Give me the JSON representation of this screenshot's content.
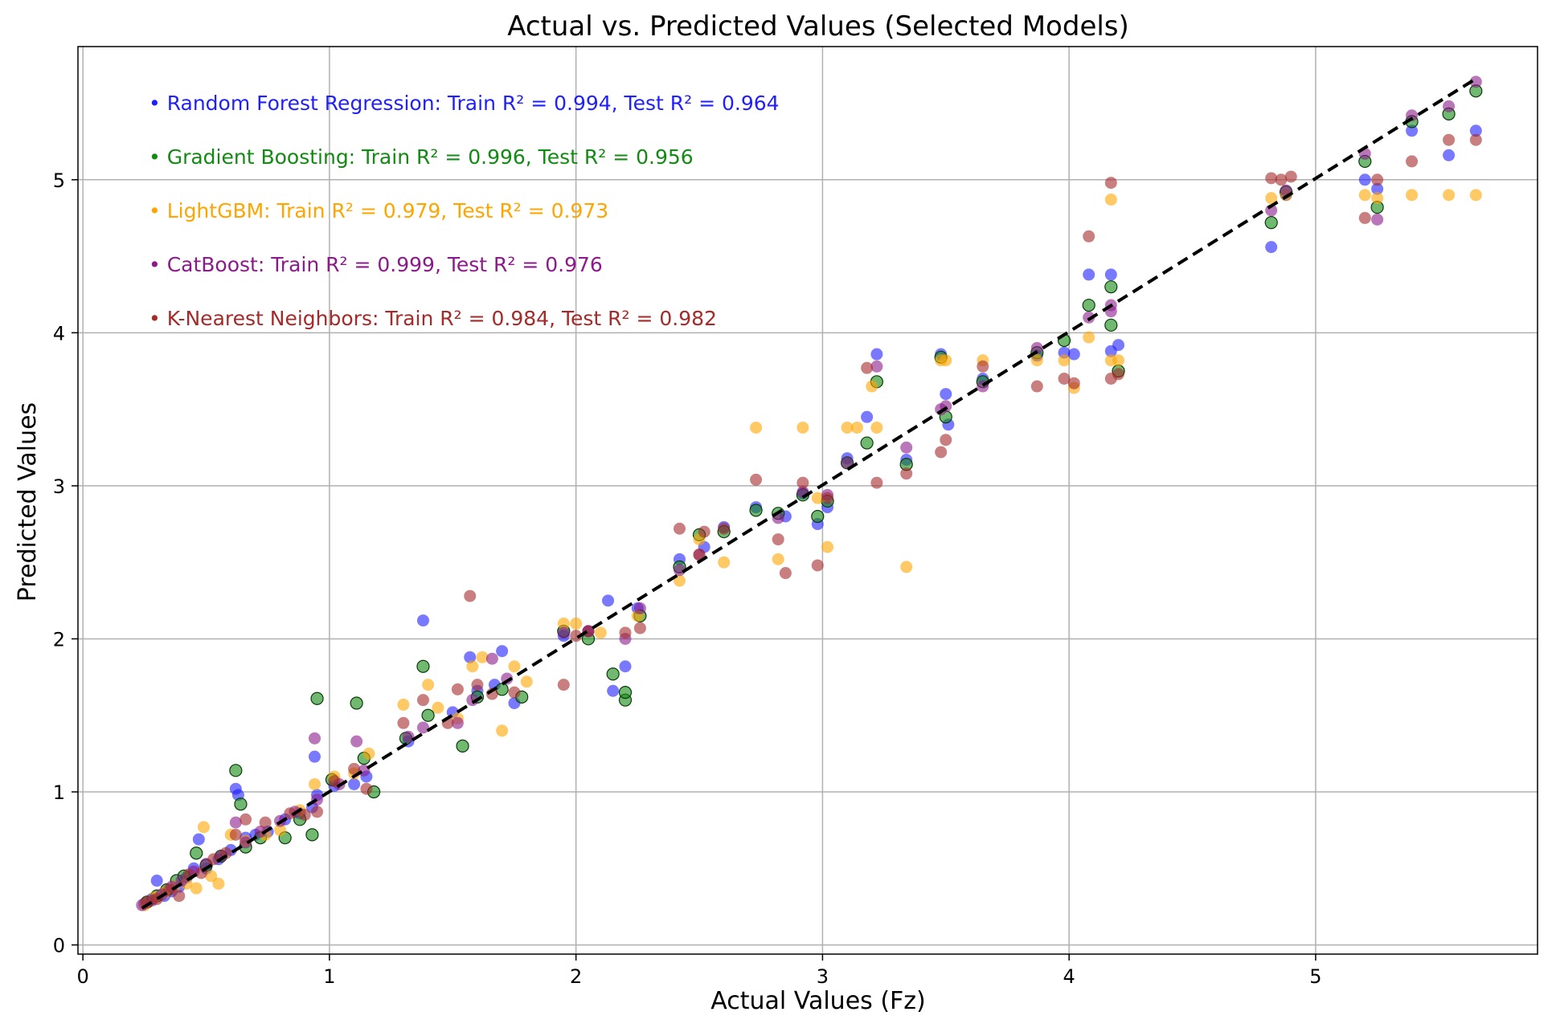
{
  "chart_data": {
    "type": "scatter",
    "title": "Actual vs. Predicted Values (Selected Models)",
    "xlabel": "Actual Values (Fz)",
    "ylabel": "Predicted Values",
    "xlim": [
      -0.02,
      5.9
    ],
    "ylim": [
      -0.06,
      5.87
    ],
    "xticks": [
      0,
      1,
      2,
      3,
      4,
      5
    ],
    "yticks": [
      0,
      1,
      2,
      3,
      4,
      5
    ],
    "grid": true,
    "reference_line": {
      "style": "dashed",
      "color": "#000000",
      "x": [
        0.24,
        5.65
      ],
      "y": [
        0.24,
        5.66
      ]
    },
    "annotations": [
      {
        "text": "• Random Forest Regression: Train R² = 0.994, Test R² = 0.964",
        "color": "#1f1fff"
      },
      {
        "text": "• Gradient Boosting: Train R² = 0.996, Test R² = 0.956",
        "color": "#138a13"
      },
      {
        "text": "• LightGBM: Train R² = 0.979, Test R² = 0.973",
        "color": "#ffa500"
      },
      {
        "text": "• CatBoost: Train R² = 0.999, Test R² = 0.976",
        "color": "#8b1a8b"
      },
      {
        "text": "• K-Nearest Neighbors: Train R² = 0.984, Test R² = 0.982",
        "color": "#a52a2a"
      }
    ],
    "series": [
      {
        "color": "#1f1fff",
        "points": [
          [
            0.25,
            0.27
          ],
          [
            0.28,
            0.3
          ],
          [
            0.3,
            0.42
          ],
          [
            0.33,
            0.32
          ],
          [
            0.36,
            0.35
          ],
          [
            0.39,
            0.38
          ],
          [
            0.42,
            0.44
          ],
          [
            0.45,
            0.5
          ],
          [
            0.47,
            0.69
          ],
          [
            0.5,
            0.5
          ],
          [
            0.55,
            0.56
          ],
          [
            0.6,
            0.62
          ],
          [
            0.62,
            1.02
          ],
          [
            0.63,
            0.98
          ],
          [
            0.66,
            0.7
          ],
          [
            0.7,
            0.72
          ],
          [
            0.75,
            0.74
          ],
          [
            0.82,
            0.82
          ],
          [
            0.88,
            0.86
          ],
          [
            0.93,
            0.9
          ],
          [
            0.94,
            1.23
          ],
          [
            0.95,
            0.98
          ],
          [
            1.02,
            1.04
          ],
          [
            1.1,
            1.05
          ],
          [
            1.15,
            1.1
          ],
          [
            1.32,
            1.33
          ],
          [
            1.38,
            2.12
          ],
          [
            1.5,
            1.52
          ],
          [
            1.57,
            1.88
          ],
          [
            1.6,
            1.66
          ],
          [
            1.67,
            1.7
          ],
          [
            1.7,
            1.92
          ],
          [
            1.75,
            1.58
          ],
          [
            1.95,
            2.02
          ],
          [
            2.05,
            2.05
          ],
          [
            2.13,
            2.25
          ],
          [
            2.15,
            1.66
          ],
          [
            2.2,
            1.82
          ],
          [
            2.25,
            2.2
          ],
          [
            2.42,
            2.52
          ],
          [
            2.52,
            2.6
          ],
          [
            2.6,
            2.73
          ],
          [
            2.73,
            2.86
          ],
          [
            2.85,
            2.8
          ],
          [
            2.92,
            2.95
          ],
          [
            2.98,
            2.75
          ],
          [
            3.02,
            2.86
          ],
          [
            3.1,
            3.18
          ],
          [
            3.18,
            3.45
          ],
          [
            3.22,
            3.86
          ],
          [
            3.34,
            3.17
          ],
          [
            3.48,
            3.86
          ],
          [
            3.5,
            3.6
          ],
          [
            3.51,
            3.4
          ],
          [
            3.65,
            3.7
          ],
          [
            3.87,
            3.85
          ],
          [
            3.98,
            3.87
          ],
          [
            4.02,
            3.86
          ],
          [
            4.08,
            4.38
          ],
          [
            4.17,
            4.38
          ],
          [
            4.17,
            3.88
          ],
          [
            4.2,
            3.92
          ],
          [
            4.82,
            4.56
          ],
          [
            4.88,
            4.9
          ],
          [
            5.2,
            5.0
          ],
          [
            5.25,
            4.94
          ],
          [
            5.39,
            5.32
          ],
          [
            5.54,
            5.16
          ],
          [
            5.65,
            5.32
          ]
        ]
      },
      {
        "color": "#138a13",
        "points": [
          [
            0.26,
            0.28
          ],
          [
            0.3,
            0.32
          ],
          [
            0.34,
            0.36
          ],
          [
            0.38,
            0.42
          ],
          [
            0.41,
            0.45
          ],
          [
            0.46,
            0.6
          ],
          [
            0.5,
            0.52
          ],
          [
            0.56,
            0.58
          ],
          [
            0.62,
            1.14
          ],
          [
            0.64,
            0.92
          ],
          [
            0.66,
            0.64
          ],
          [
            0.72,
            0.7
          ],
          [
            0.82,
            0.7
          ],
          [
            0.88,
            0.82
          ],
          [
            0.95,
            1.61
          ],
          [
            0.93,
            0.72
          ],
          [
            1.01,
            1.08
          ],
          [
            1.11,
            1.58
          ],
          [
            1.14,
            1.22
          ],
          [
            1.18,
            1.0
          ],
          [
            1.31,
            1.35
          ],
          [
            1.38,
            1.82
          ],
          [
            1.4,
            1.5
          ],
          [
            1.54,
            1.3
          ],
          [
            1.6,
            1.62
          ],
          [
            1.7,
            1.67
          ],
          [
            1.78,
            1.62
          ],
          [
            1.95,
            2.05
          ],
          [
            2.05,
            2.0
          ],
          [
            2.15,
            1.77
          ],
          [
            2.2,
            1.6
          ],
          [
            2.2,
            1.65
          ],
          [
            2.26,
            2.15
          ],
          [
            2.42,
            2.47
          ],
          [
            2.5,
            2.68
          ],
          [
            2.6,
            2.7
          ],
          [
            2.73,
            2.84
          ],
          [
            2.82,
            2.82
          ],
          [
            2.92,
            2.94
          ],
          [
            2.98,
            2.8
          ],
          [
            3.02,
            2.9
          ],
          [
            3.1,
            3.15
          ],
          [
            3.18,
            3.28
          ],
          [
            3.22,
            3.68
          ],
          [
            3.34,
            3.14
          ],
          [
            3.48,
            3.84
          ],
          [
            3.5,
            3.45
          ],
          [
            3.65,
            3.68
          ],
          [
            3.87,
            3.87
          ],
          [
            3.98,
            3.95
          ],
          [
            4.08,
            4.18
          ],
          [
            4.17,
            4.3
          ],
          [
            4.17,
            4.05
          ],
          [
            4.2,
            3.75
          ],
          [
            4.82,
            4.72
          ],
          [
            4.88,
            4.92
          ],
          [
            5.2,
            5.12
          ],
          [
            5.25,
            4.82
          ],
          [
            5.39,
            5.38
          ],
          [
            5.54,
            5.43
          ],
          [
            5.65,
            5.58
          ]
        ]
      },
      {
        "color": "#ffa500",
        "points": [
          [
            0.25,
            0.26
          ],
          [
            0.29,
            0.31
          ],
          [
            0.33,
            0.34
          ],
          [
            0.37,
            0.38
          ],
          [
            0.42,
            0.4
          ],
          [
            0.46,
            0.37
          ],
          [
            0.49,
            0.77
          ],
          [
            0.52,
            0.45
          ],
          [
            0.55,
            0.4
          ],
          [
            0.6,
            0.72
          ],
          [
            0.66,
            0.68
          ],
          [
            0.74,
            0.72
          ],
          [
            0.8,
            0.75
          ],
          [
            0.88,
            0.88
          ],
          [
            0.94,
            1.05
          ],
          [
            1.02,
            1.1
          ],
          [
            1.1,
            1.12
          ],
          [
            1.16,
            1.25
          ],
          [
            1.3,
            1.57
          ],
          [
            1.4,
            1.7
          ],
          [
            1.44,
            1.55
          ],
          [
            1.52,
            1.48
          ],
          [
            1.58,
            1.82
          ],
          [
            1.62,
            1.88
          ],
          [
            1.7,
            1.4
          ],
          [
            1.75,
            1.82
          ],
          [
            1.8,
            1.72
          ],
          [
            1.95,
            2.1
          ],
          [
            2.0,
            2.1
          ],
          [
            2.1,
            2.04
          ],
          [
            2.25,
            2.15
          ],
          [
            2.42,
            2.38
          ],
          [
            2.5,
            2.65
          ],
          [
            2.6,
            2.5
          ],
          [
            2.73,
            3.38
          ],
          [
            2.82,
            2.52
          ],
          [
            2.92,
            3.38
          ],
          [
            2.98,
            2.92
          ],
          [
            3.02,
            2.6
          ],
          [
            3.1,
            3.38
          ],
          [
            3.14,
            3.38
          ],
          [
            3.2,
            3.65
          ],
          [
            3.22,
            3.38
          ],
          [
            3.34,
            2.47
          ],
          [
            3.48,
            3.82
          ],
          [
            3.5,
            3.82
          ],
          [
            3.65,
            3.82
          ],
          [
            3.87,
            3.82
          ],
          [
            3.98,
            3.82
          ],
          [
            4.02,
            3.64
          ],
          [
            4.08,
            3.97
          ],
          [
            4.17,
            4.87
          ],
          [
            4.17,
            3.82
          ],
          [
            4.2,
            3.82
          ],
          [
            4.82,
            4.88
          ],
          [
            4.88,
            4.9
          ],
          [
            5.2,
            4.9
          ],
          [
            5.25,
            4.88
          ],
          [
            5.39,
            4.9
          ],
          [
            5.54,
            4.9
          ],
          [
            5.65,
            4.9
          ]
        ]
      },
      {
        "color": "#8b1a8b",
        "points": [
          [
            0.24,
            0.26
          ],
          [
            0.28,
            0.29
          ],
          [
            0.32,
            0.33
          ],
          [
            0.36,
            0.38
          ],
          [
            0.4,
            0.42
          ],
          [
            0.45,
            0.48
          ],
          [
            0.5,
            0.53
          ],
          [
            0.56,
            0.58
          ],
          [
            0.62,
            0.8
          ],
          [
            0.66,
            0.67
          ],
          [
            0.72,
            0.74
          ],
          [
            0.8,
            0.81
          ],
          [
            0.86,
            0.87
          ],
          [
            0.94,
            1.35
          ],
          [
            0.95,
            0.95
          ],
          [
            1.04,
            1.05
          ],
          [
            1.11,
            1.33
          ],
          [
            1.14,
            1.14
          ],
          [
            1.32,
            1.36
          ],
          [
            1.38,
            1.42
          ],
          [
            1.52,
            1.45
          ],
          [
            1.58,
            1.6
          ],
          [
            1.66,
            1.87
          ],
          [
            1.72,
            1.74
          ],
          [
            1.95,
            2.04
          ],
          [
            2.05,
            2.05
          ],
          [
            2.2,
            2.0
          ],
          [
            2.26,
            2.2
          ],
          [
            2.42,
            2.45
          ],
          [
            2.5,
            2.55
          ],
          [
            2.82,
            2.79
          ],
          [
            2.92,
            2.96
          ],
          [
            3.02,
            2.94
          ],
          [
            3.1,
            3.15
          ],
          [
            3.22,
            3.78
          ],
          [
            3.34,
            3.25
          ],
          [
            3.48,
            3.5
          ],
          [
            3.5,
            3.52
          ],
          [
            3.65,
            3.65
          ],
          [
            3.87,
            3.9
          ],
          [
            4.08,
            4.1
          ],
          [
            4.17,
            4.18
          ],
          [
            4.17,
            4.14
          ],
          [
            4.82,
            4.8
          ],
          [
            4.88,
            4.93
          ],
          [
            5.2,
            5.17
          ],
          [
            5.25,
            4.74
          ],
          [
            5.39,
            5.42
          ],
          [
            5.54,
            5.48
          ],
          [
            5.65,
            5.64
          ]
        ]
      },
      {
        "color": "#a52a2a",
        "points": [
          [
            0.26,
            0.28
          ],
          [
            0.3,
            0.3
          ],
          [
            0.35,
            0.36
          ],
          [
            0.39,
            0.32
          ],
          [
            0.43,
            0.46
          ],
          [
            0.48,
            0.47
          ],
          [
            0.53,
            0.56
          ],
          [
            0.58,
            0.6
          ],
          [
            0.62,
            0.72
          ],
          [
            0.66,
            0.82
          ],
          [
            0.74,
            0.8
          ],
          [
            0.84,
            0.86
          ],
          [
            0.9,
            0.85
          ],
          [
            0.95,
            0.87
          ],
          [
            1.02,
            1.07
          ],
          [
            1.1,
            1.15
          ],
          [
            1.15,
            1.02
          ],
          [
            1.3,
            1.45
          ],
          [
            1.38,
            1.6
          ],
          [
            1.48,
            1.45
          ],
          [
            1.52,
            1.67
          ],
          [
            1.57,
            2.28
          ],
          [
            1.6,
            1.7
          ],
          [
            1.66,
            1.64
          ],
          [
            1.75,
            1.65
          ],
          [
            1.95,
            1.7
          ],
          [
            2.0,
            2.02
          ],
          [
            2.05,
            2.05
          ],
          [
            2.2,
            2.04
          ],
          [
            2.26,
            2.07
          ],
          [
            2.42,
            2.72
          ],
          [
            2.5,
            2.55
          ],
          [
            2.52,
            2.7
          ],
          [
            2.6,
            2.72
          ],
          [
            2.73,
            3.04
          ],
          [
            2.82,
            2.65
          ],
          [
            2.85,
            2.43
          ],
          [
            2.92,
            3.02
          ],
          [
            2.98,
            2.48
          ],
          [
            3.02,
            2.92
          ],
          [
            3.18,
            3.77
          ],
          [
            3.22,
            3.02
          ],
          [
            3.34,
            3.08
          ],
          [
            3.48,
            3.22
          ],
          [
            3.5,
            3.3
          ],
          [
            3.65,
            3.78
          ],
          [
            3.87,
            3.65
          ],
          [
            3.98,
            3.7
          ],
          [
            4.02,
            3.67
          ],
          [
            4.08,
            4.63
          ],
          [
            4.17,
            4.98
          ],
          [
            4.17,
            3.7
          ],
          [
            4.2,
            3.73
          ],
          [
            4.82,
            5.01
          ],
          [
            4.86,
            5.0
          ],
          [
            4.9,
            5.02
          ],
          [
            5.2,
            4.75
          ],
          [
            5.25,
            5.0
          ],
          [
            5.39,
            5.12
          ],
          [
            5.54,
            5.26
          ],
          [
            5.65,
            5.26
          ]
        ]
      }
    ]
  }
}
